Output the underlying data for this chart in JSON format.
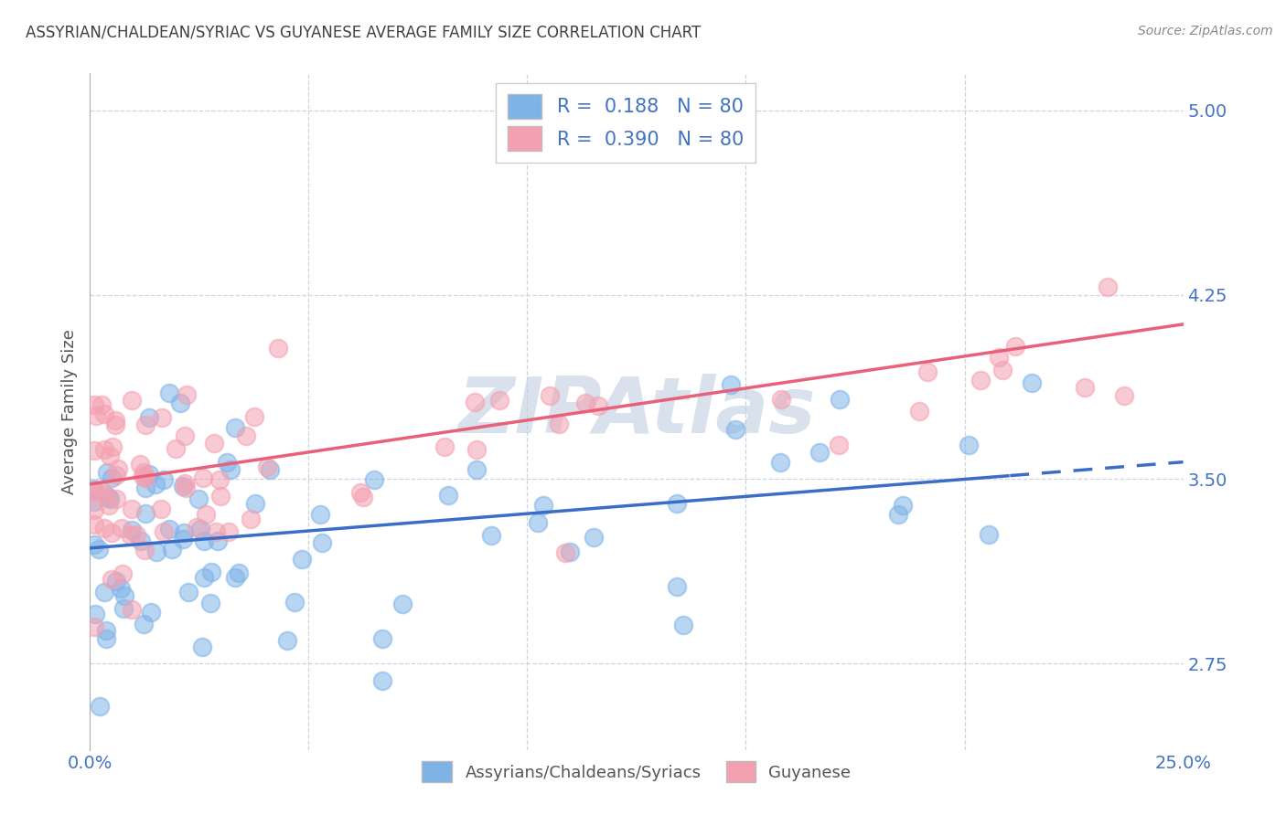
{
  "title": "ASSYRIAN/CHALDEAN/SYRIAC VS GUYANESE AVERAGE FAMILY SIZE CORRELATION CHART",
  "source": "Source: ZipAtlas.com",
  "ylabel": "Average Family Size",
  "y_ticks": [
    2.75,
    3.5,
    4.25,
    5.0
  ],
  "x_min": 0.0,
  "x_max": 25.0,
  "y_min": 2.4,
  "y_max": 5.15,
  "blue_R": 0.188,
  "pink_R": 0.39,
  "N": 80,
  "blue_color": "#7EB3E8",
  "pink_color": "#F4A0B0",
  "blue_line_color": "#3B6DC7",
  "pink_line_color": "#E8607A",
  "title_color": "#404040",
  "axis_label_color": "#4472C4",
  "grid_color": "#C8D0DC",
  "watermark_color": "#C0CDE0",
  "background_color": "#FFFFFF",
  "blue_intercept": 3.22,
  "blue_slope": 0.014,
  "pink_intercept": 3.48,
  "pink_slope": 0.026,
  "dashed_split_x": 21.0,
  "legend_label_blue": "R =  0.188   N = 80",
  "legend_label_pink": "R =  0.390   N = 80",
  "bottom_label_blue": "Assyrians/Chaldeans/Syriacs",
  "bottom_label_pink": "Guyanese"
}
